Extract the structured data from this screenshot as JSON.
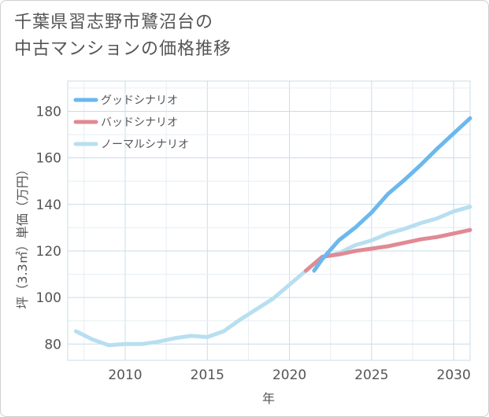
{
  "title": {
    "line1": "千葉県習志野市鷺沼台の",
    "line2": "中古マンションの価格推移"
  },
  "chart_data": {
    "type": "line",
    "xlabel": "年",
    "ylabel": "坪（3.3㎡）単価（万円）",
    "xlim": [
      2006.5,
      2031
    ],
    "ylim": [
      73,
      193
    ],
    "xticks": [
      2010,
      2015,
      2020,
      2025,
      2030
    ],
    "yticks": [
      80,
      100,
      120,
      140,
      160,
      180
    ],
    "grid": true,
    "legend_position": "top-left",
    "series": [
      {
        "name": "グッドシナリオ",
        "color": "#6cb8ee",
        "x": [
          2021.5,
          2022,
          2023,
          2024,
          2025,
          2026,
          2027,
          2028,
          2029,
          2030,
          2031
        ],
        "y": [
          111.5,
          116.5,
          124.5,
          130,
          136.5,
          144.5,
          150.5,
          157,
          164,
          170.5,
          177
        ]
      },
      {
        "name": "バッドシナリオ",
        "color": "#e08a94",
        "x": [
          2021,
          2022,
          2023,
          2024,
          2025,
          2026,
          2027,
          2028,
          2029,
          2030,
          2031
        ],
        "y": [
          111.5,
          117.5,
          118.5,
          120,
          121,
          122,
          123.5,
          125,
          126,
          127.5,
          129
        ]
      },
      {
        "name": "ノーマルシナリオ",
        "color": "#b7dff0",
        "x": [
          2007,
          2008,
          2009,
          2010,
          2011,
          2012,
          2013,
          2014,
          2015,
          2016,
          2017,
          2018,
          2019,
          2020,
          2021,
          2022,
          2023,
          2024,
          2025,
          2026,
          2027,
          2028,
          2029,
          2030,
          2031
        ],
        "y": [
          85.5,
          82,
          79.5,
          80,
          80,
          81,
          82.5,
          83.5,
          83,
          85.5,
          90.5,
          95,
          99.5,
          105.5,
          111.5,
          117.5,
          119,
          122.5,
          124.5,
          127.5,
          129.5,
          132,
          134,
          137,
          139
        ]
      }
    ]
  }
}
